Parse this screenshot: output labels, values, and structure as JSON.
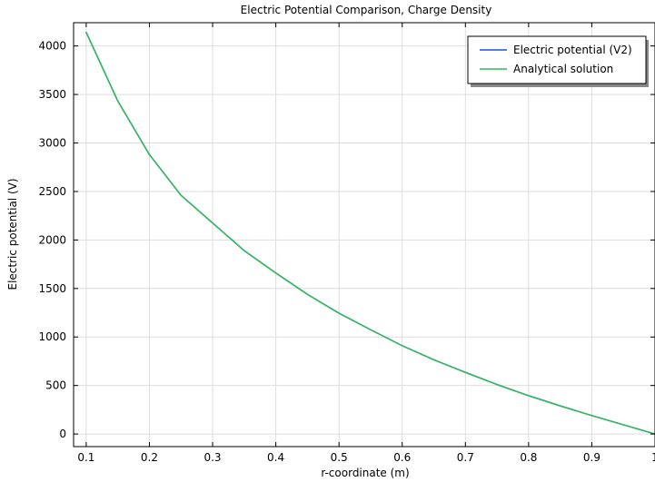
{
  "chart_data": {
    "type": "line",
    "title": "Electric Potential Comparison, Charge Density",
    "xlabel": "r-coordinate (m)",
    "ylabel": "Electric potential (V)",
    "xlim": [
      0.08,
      1.0
    ],
    "ylim": [
      -130,
      4240
    ],
    "xticks": [
      0.1,
      0.2,
      0.3,
      0.4,
      0.5,
      0.6,
      0.7,
      0.8,
      0.9,
      1
    ],
    "xtick_labels": [
      "0.1",
      "0.2",
      "0.3",
      "0.4",
      "0.5",
      "0.6",
      "0.7",
      "0.8",
      "0.9",
      "1"
    ],
    "yticks": [
      0,
      500,
      1000,
      1500,
      2000,
      2500,
      3000,
      3500,
      4000
    ],
    "ytick_labels": [
      "0",
      "500",
      "1000",
      "1500",
      "2000",
      "2500",
      "3000",
      "3500",
      "4000"
    ],
    "grid": true,
    "legend_position": "top-right",
    "x": [
      0.1,
      0.15,
      0.2,
      0.25,
      0.3,
      0.35,
      0.4,
      0.45,
      0.5,
      0.55,
      0.6,
      0.65,
      0.7,
      0.75,
      0.8,
      0.85,
      0.9,
      0.95,
      1.0
    ],
    "series": [
      {
        "name": "Electric potential (V2)",
        "color": "#1f4fe0",
        "values": [
          4140,
          3432,
          2880,
          2460,
          2175,
          1890,
          1660,
          1440,
          1245,
          1075,
          910,
          765,
          635,
          510,
          395,
          290,
          190,
          95,
          0
        ]
      },
      {
        "name": "Analytical solution",
        "color": "#33bb55",
        "values": [
          4140,
          3432,
          2880,
          2460,
          2175,
          1890,
          1660,
          1440,
          1245,
          1075,
          910,
          765,
          635,
          510,
          395,
          290,
          190,
          95,
          0
        ]
      }
    ]
  }
}
